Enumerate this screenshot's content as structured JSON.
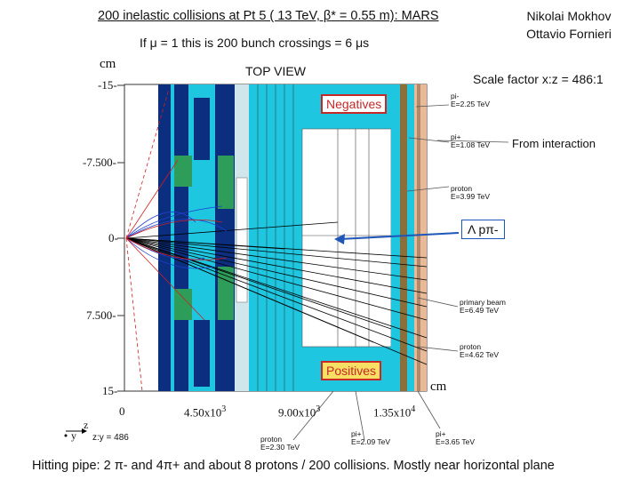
{
  "header": {
    "title": "200 inelastic collisions at Pt 5 ( 13 TeV, β* = 0.55 m): MARS",
    "subtitle": "If μ = 1 this is 200 bunch crossings = 6 μs",
    "author_1": "Nikolai Mokhov",
    "author_2": "Ottavio Fornieri",
    "scale_factor": "Scale factor x:z = 486:1",
    "view": "TOP VIEW"
  },
  "labels": {
    "negatives": "Negatives",
    "positives": "Positives",
    "from_interaction": "From interaction",
    "lambda_decay": "Λ  pπ-"
  },
  "plot": {
    "y_unit": "cm",
    "x_unit": "cm",
    "y_ticks": [
      "-15-",
      "-7.500-",
      "0-",
      "7.500-",
      "15-"
    ],
    "x_ticks": [
      {
        "base": "0",
        "exp": ""
      },
      {
        "base": "4.50x10",
        "exp": "3"
      },
      {
        "base": "9.00x10",
        "exp": "3"
      },
      {
        "base": "1.35x10",
        "exp": "4"
      }
    ],
    "axis_z": "z",
    "axis_y": "y",
    "axis_ratio": "z:y = 486"
  },
  "particles": {
    "pi_minus": {
      "name": "pi-",
      "energy": "E=2.25 TeV"
    },
    "pi_plus_right": {
      "name": "pi+",
      "energy": "E=1.08 TeV"
    },
    "proton_right": {
      "name": "proton",
      "energy": "E=3.99 TeV"
    },
    "primary_beam": {
      "name": "primary beam",
      "energy": "E=6.49 TeV"
    },
    "proton_right_2": {
      "name": "proton",
      "energy": "E=4.62 TeV"
    },
    "proton_bottom": {
      "name": "proton",
      "energy": "E=2.30 TeV"
    },
    "pi_plus_bottom": {
      "name": "pi+",
      "energy": "E=2.09 TeV"
    },
    "pi_plus_bottom_2": {
      "name": "pi+",
      "energy": "E=3.65 TeV"
    }
  },
  "footer": {
    "caption": "Hitting pipe: 2 π- and 4π+ and about 8 protons / 200 collisions. Mostly near horizontal plane"
  },
  "colors": {
    "cyan": "#1ec6e0",
    "dark_blue": "#0b2f7e",
    "green": "#2f9d5a",
    "red_frame": "#c62828",
    "arrow_blue": "#1f57b8"
  }
}
